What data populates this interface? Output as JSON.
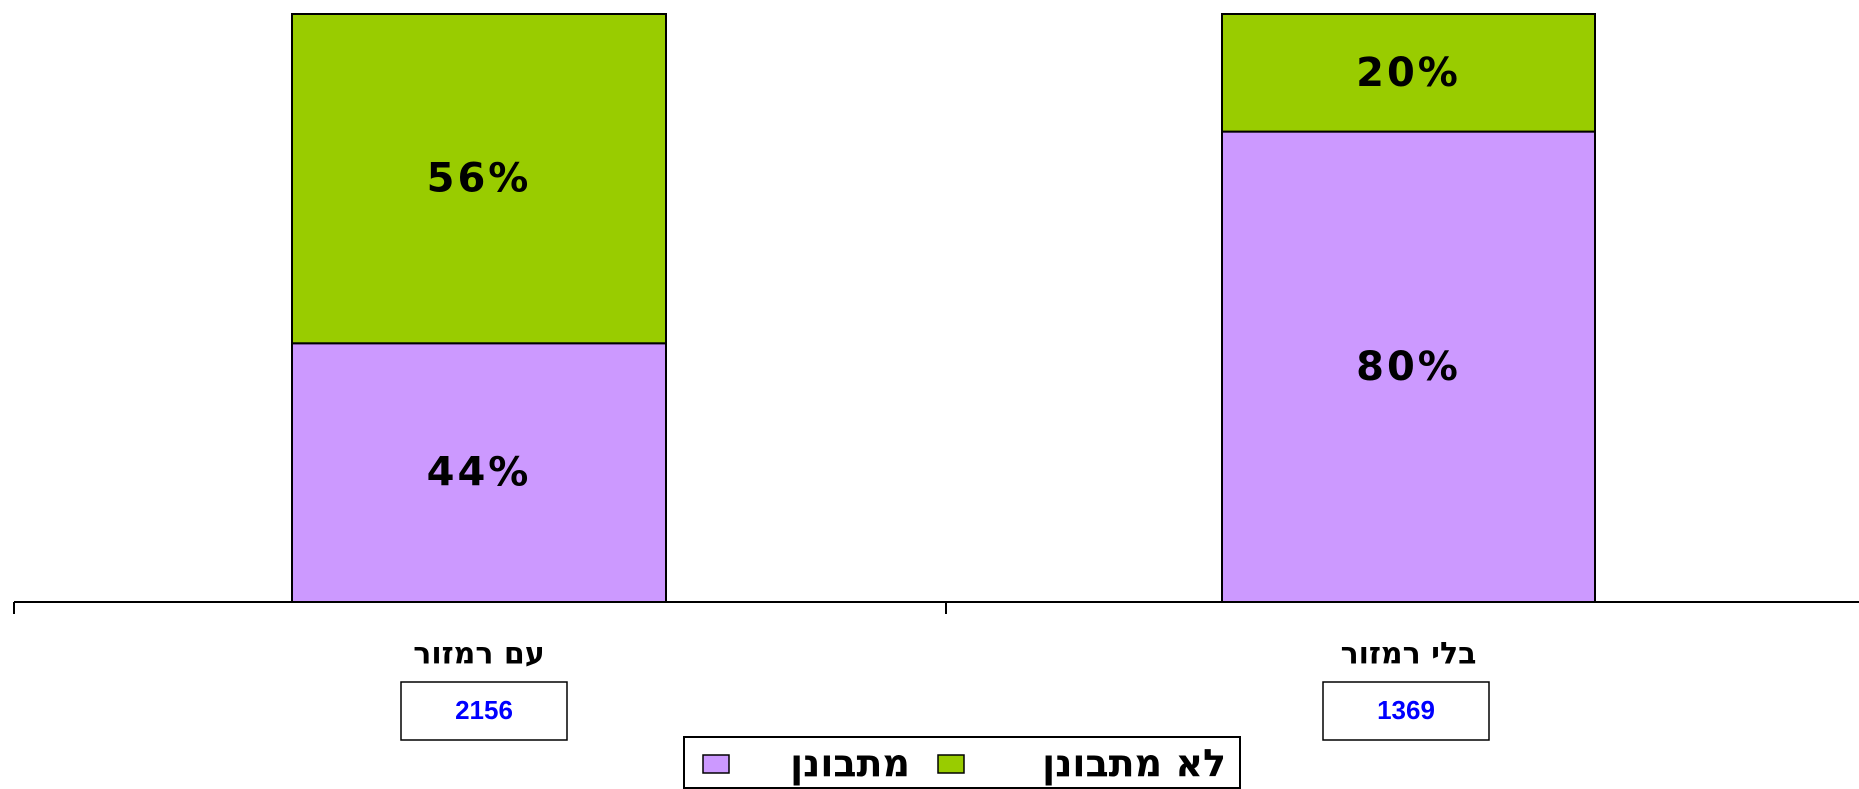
{
  "chart_data": {
    "type": "stacked_bar",
    "categories": [
      "עם רמזור",
      "בלי רמזור"
    ],
    "sample_sizes": [
      2156,
      1369
    ],
    "series": [
      {
        "name": "מתבונן",
        "color": "#cc99ff",
        "values": [
          44,
          80
        ],
        "value_labels": [
          "44%",
          "80%"
        ]
      },
      {
        "name": "לא מתבונן",
        "color": "#99cc00",
        "values": [
          56,
          20
        ],
        "value_labels": [
          "56%",
          "20%"
        ]
      }
    ],
    "ylim": [
      0,
      100
    ]
  }
}
